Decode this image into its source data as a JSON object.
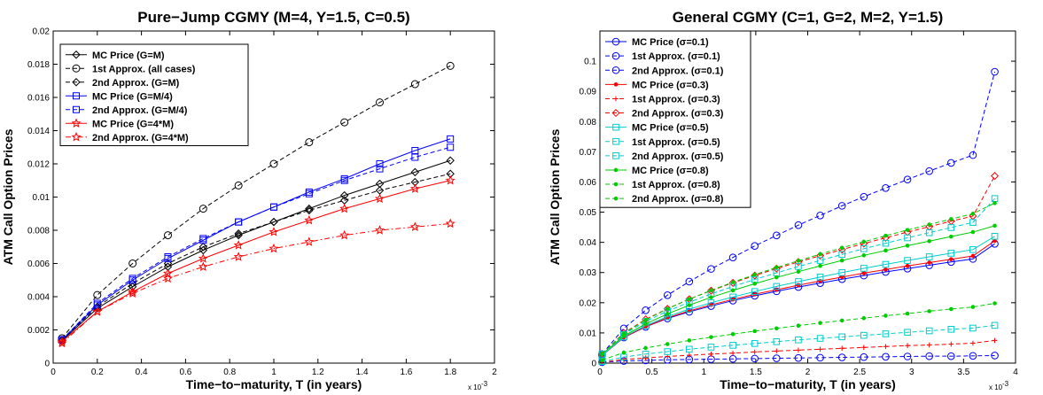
{
  "chart_data": [
    {
      "type": "line",
      "title": "Pure−Jump CGMY (M=4, Y=1.5, C=0.5)",
      "xlabel": "Time−to−maturity, T (in years)",
      "ylabel": "ATM Call Option Prices",
      "x_exponent_label": "x 10",
      "x_exponent_power": "-3",
      "xlim": [
        0,
        0.002
      ],
      "ylim": [
        0,
        0.02
      ],
      "x_ticks": [
        0,
        0.0002,
        0.0004,
        0.0006,
        0.0008,
        0.001,
        0.0012,
        0.0014,
        0.0016,
        0.0018,
        0.002
      ],
      "x_tick_labels": [
        "0",
        "0.2",
        "0.4",
        "0.6",
        "0.8",
        "1",
        "1.2",
        "1.4",
        "1.6",
        "1.8",
        "2"
      ],
      "y_ticks": [
        0,
        0.002,
        0.004,
        0.006,
        0.008,
        0.01,
        0.012,
        0.014,
        0.016,
        0.018,
        0.02
      ],
      "y_tick_labels": [
        "0",
        "0.002",
        "0.004",
        "0.006",
        "0.008",
        "0.01",
        "0.012",
        "0.014",
        "0.016",
        "0.018",
        "0.02"
      ],
      "grid": false,
      "legend_position": "top-left",
      "x": [
        4e-05,
        0.0002,
        0.00036,
        0.00052,
        0.00068,
        0.00084,
        0.001,
        0.00116,
        0.00132,
        0.00148,
        0.00164,
        0.0018
      ],
      "series": [
        {
          "name": "MC Price (G=M)",
          "color": "#000000",
          "dash": "solid",
          "marker": "diamond",
          "values": [
            0.00135,
            0.0033,
            0.0046,
            0.0058,
            0.0068,
            0.0077,
            0.0085,
            0.0093,
            0.0101,
            0.0108,
            0.0115,
            0.0122
          ]
        },
        {
          "name": "1st Approx. (all cases)",
          "color": "#000000",
          "dash": "dashed",
          "marker": "circle",
          "values": [
            0.0015,
            0.0041,
            0.006,
            0.0077,
            0.0093,
            0.0107,
            0.012,
            0.0133,
            0.0145,
            0.0157,
            0.0168,
            0.0179
          ]
        },
        {
          "name": "2nd Approx. (G=M)",
          "color": "#000000",
          "dash": "dashed",
          "marker": "diamond",
          "values": [
            0.0014,
            0.0034,
            0.0048,
            0.006,
            0.007,
            0.0078,
            0.0085,
            0.0092,
            0.0098,
            0.0104,
            0.0109,
            0.0114
          ]
        },
        {
          "name": "MC Price (G=M/4)",
          "color": "#0000ff",
          "dash": "solid",
          "marker": "square",
          "values": [
            0.0014,
            0.0035,
            0.005,
            0.0063,
            0.0074,
            0.0085,
            0.0094,
            0.0103,
            0.0111,
            0.012,
            0.0128,
            0.0135
          ]
        },
        {
          "name": "2nd Approx. (G=M/4)",
          "color": "#0000ff",
          "dash": "dashed",
          "marker": "square",
          "values": [
            0.0014,
            0.0036,
            0.0051,
            0.0064,
            0.0075,
            0.0085,
            0.0094,
            0.0102,
            0.011,
            0.0117,
            0.0124,
            0.013
          ]
        },
        {
          "name": "MC Price (G=4*M)",
          "color": "#ff0000",
          "dash": "solid",
          "marker": "star",
          "values": [
            0.0013,
            0.0031,
            0.0043,
            0.0054,
            0.0063,
            0.0071,
            0.0079,
            0.0086,
            0.0093,
            0.0099,
            0.0105,
            0.011
          ]
        },
        {
          "name": "2nd Approx. (G=4*M)",
          "color": "#ff0000",
          "dash": "dashdot",
          "marker": "star",
          "values": [
            0.0012,
            0.0031,
            0.0042,
            0.0051,
            0.0058,
            0.0064,
            0.0069,
            0.0073,
            0.0077,
            0.008,
            0.0082,
            0.0084
          ]
        }
      ]
    },
    {
      "type": "line",
      "title": "General CGMY (C=1, G=2, M=2, Y=1.5)",
      "xlabel": "Time−to−maturity, T (in years)",
      "ylabel": "ATM Call Option Prices",
      "x_exponent_label": "x 10",
      "x_exponent_power": "-3",
      "xlim": [
        0,
        0.004
      ],
      "ylim": [
        0,
        0.11
      ],
      "x_ticks": [
        0,
        0.0005,
        0.001,
        0.0015,
        0.002,
        0.0025,
        0.003,
        0.0035,
        0.004
      ],
      "x_tick_labels": [
        "0",
        "0.5",
        "1",
        "1.5",
        "2",
        "2.5",
        "3",
        "3.5",
        "4"
      ],
      "y_ticks": [
        0,
        0.01,
        0.02,
        0.03,
        0.04,
        0.05,
        0.06,
        0.07,
        0.08,
        0.09,
        0.1
      ],
      "y_tick_labels": [
        "0",
        "0.01",
        "0.02",
        "0.03",
        "0.04",
        "0.05",
        "0.06",
        "0.07",
        "0.08",
        "0.09",
        "0.1"
      ],
      "grid": false,
      "legend_position": "top-left",
      "x": [
        2e-05,
        0.00023,
        0.00044,
        0.00065,
        0.00086,
        0.00107,
        0.00128,
        0.00149,
        0.0017,
        0.00191,
        0.00212,
        0.00233,
        0.00254,
        0.00275,
        0.00296,
        0.00317,
        0.00338,
        0.00359,
        0.0038
      ],
      "series": [
        {
          "name": "MC Price (σ=0.1)",
          "color": "#0000ff",
          "dash": "solid",
          "marker": "circle",
          "values": [
            0.0025,
            0.0085,
            0.012,
            0.0148,
            0.017,
            0.0189,
            0.0207,
            0.0223,
            0.0238,
            0.0252,
            0.0265,
            0.0278,
            0.029,
            0.0302,
            0.0313,
            0.0324,
            0.0335,
            0.0345,
            0.0395
          ]
        },
        {
          "name": "1st Approx. (σ=0.1)",
          "color": "#0000ff",
          "dash": "dashed",
          "marker": "circle",
          "values": [
            0.0003,
            0.0007,
            0.0009,
            0.0011,
            0.0012,
            0.0013,
            0.0014,
            0.0015,
            0.0016,
            0.0017,
            0.0018,
            0.0019,
            0.002,
            0.0021,
            0.0022,
            0.0023,
            0.0023,
            0.0024,
            0.0025
          ]
        },
        {
          "name": "2nd Approx. (σ=0.1)",
          "color": "#0000ff",
          "dash": "dashed",
          "marker": "circle",
          "values": [
            0.003,
            0.0115,
            0.0175,
            0.0225,
            0.027,
            0.0312,
            0.035,
            0.0388,
            0.0423,
            0.0457,
            0.0489,
            0.0521,
            0.0551,
            0.058,
            0.0608,
            0.0636,
            0.0663,
            0.0689,
            0.0965
          ]
        },
        {
          "name": "MC Price (σ=0.3)",
          "color": "#ff0000",
          "dash": "solid",
          "marker": "dot",
          "values": [
            0.0025,
            0.0085,
            0.0121,
            0.015,
            0.0173,
            0.0193,
            0.0211,
            0.0228,
            0.0243,
            0.0258,
            0.0272,
            0.0285,
            0.0298,
            0.031,
            0.0322,
            0.0333,
            0.0344,
            0.0355,
            0.0405
          ]
        },
        {
          "name": "1st Approx. (σ=0.3)",
          "color": "#ff0000",
          "dash": "dashed",
          "marker": "plus",
          "values": [
            0.0003,
            0.0012,
            0.0017,
            0.0022,
            0.0026,
            0.003,
            0.0033,
            0.0037,
            0.004,
            0.0043,
            0.0046,
            0.0049,
            0.0052,
            0.0055,
            0.0058,
            0.006,
            0.0063,
            0.0066,
            0.0075
          ]
        },
        {
          "name": "2nd Approx. (σ=0.3)",
          "color": "#ff0000",
          "dash": "dashed",
          "marker": "diamond",
          "values": [
            0.003,
            0.01,
            0.0145,
            0.018,
            0.0212,
            0.024,
            0.0266,
            0.029,
            0.0313,
            0.0335,
            0.0356,
            0.0376,
            0.0396,
            0.0415,
            0.0434,
            0.0452,
            0.047,
            0.0487,
            0.062
          ]
        },
        {
          "name": "MC Price (σ=0.5)",
          "color": "#00cccc",
          "dash": "solid",
          "marker": "square",
          "values": [
            0.0025,
            0.0087,
            0.0124,
            0.0154,
            0.0179,
            0.02,
            0.0219,
            0.0237,
            0.0254,
            0.027,
            0.0285,
            0.03,
            0.0314,
            0.0327,
            0.034,
            0.0352,
            0.0364,
            0.0376,
            0.042
          ]
        },
        {
          "name": "1st Approx. (σ=0.5)",
          "color": "#00cccc",
          "dash": "dashed",
          "marker": "square",
          "values": [
            0.0005,
            0.002,
            0.003,
            0.0038,
            0.0046,
            0.0053,
            0.0059,
            0.0065,
            0.0071,
            0.0077,
            0.0082,
            0.0087,
            0.0092,
            0.0097,
            0.0102,
            0.0107,
            0.0112,
            0.0116,
            0.0125
          ]
        },
        {
          "name": "2nd Approx. (σ=0.5)",
          "color": "#00cccc",
          "dash": "dashed",
          "marker": "square",
          "values": [
            0.003,
            0.0095,
            0.0138,
            0.0172,
            0.0202,
            0.0229,
            0.0254,
            0.0277,
            0.0299,
            0.032,
            0.034,
            0.036,
            0.0379,
            0.0397,
            0.0415,
            0.0432,
            0.0449,
            0.0466,
            0.0545
          ]
        },
        {
          "name": "MC Price (σ=0.8)",
          "color": "#00cc00",
          "dash": "solid",
          "marker": "dot",
          "values": [
            0.003,
            0.009,
            0.013,
            0.0163,
            0.0192,
            0.0218,
            0.0241,
            0.0263,
            0.0284,
            0.0303,
            0.0322,
            0.034,
            0.0357,
            0.0373,
            0.0389,
            0.0404,
            0.0419,
            0.0434,
            0.0455
          ]
        },
        {
          "name": "1st Approx. (σ=0.8)",
          "color": "#00cc00",
          "dash": "dashed",
          "marker": "dot",
          "values": [
            0.001,
            0.0035,
            0.005,
            0.0063,
            0.0075,
            0.0086,
            0.0096,
            0.0106,
            0.0115,
            0.0124,
            0.0133,
            0.0141,
            0.0149,
            0.0157,
            0.0164,
            0.0172,
            0.0179,
            0.0186,
            0.0198
          ]
        },
        {
          "name": "2nd Approx. (σ=0.8)",
          "color": "#00cc00",
          "dash": "dashed",
          "marker": "dot",
          "values": [
            0.003,
            0.0098,
            0.0143,
            0.018,
            0.0212,
            0.0241,
            0.0268,
            0.0293,
            0.0317,
            0.0339,
            0.0361,
            0.0382,
            0.0402,
            0.0422,
            0.0441,
            0.0459,
            0.0477,
            0.0495,
            0.053
          ]
        }
      ]
    }
  ]
}
